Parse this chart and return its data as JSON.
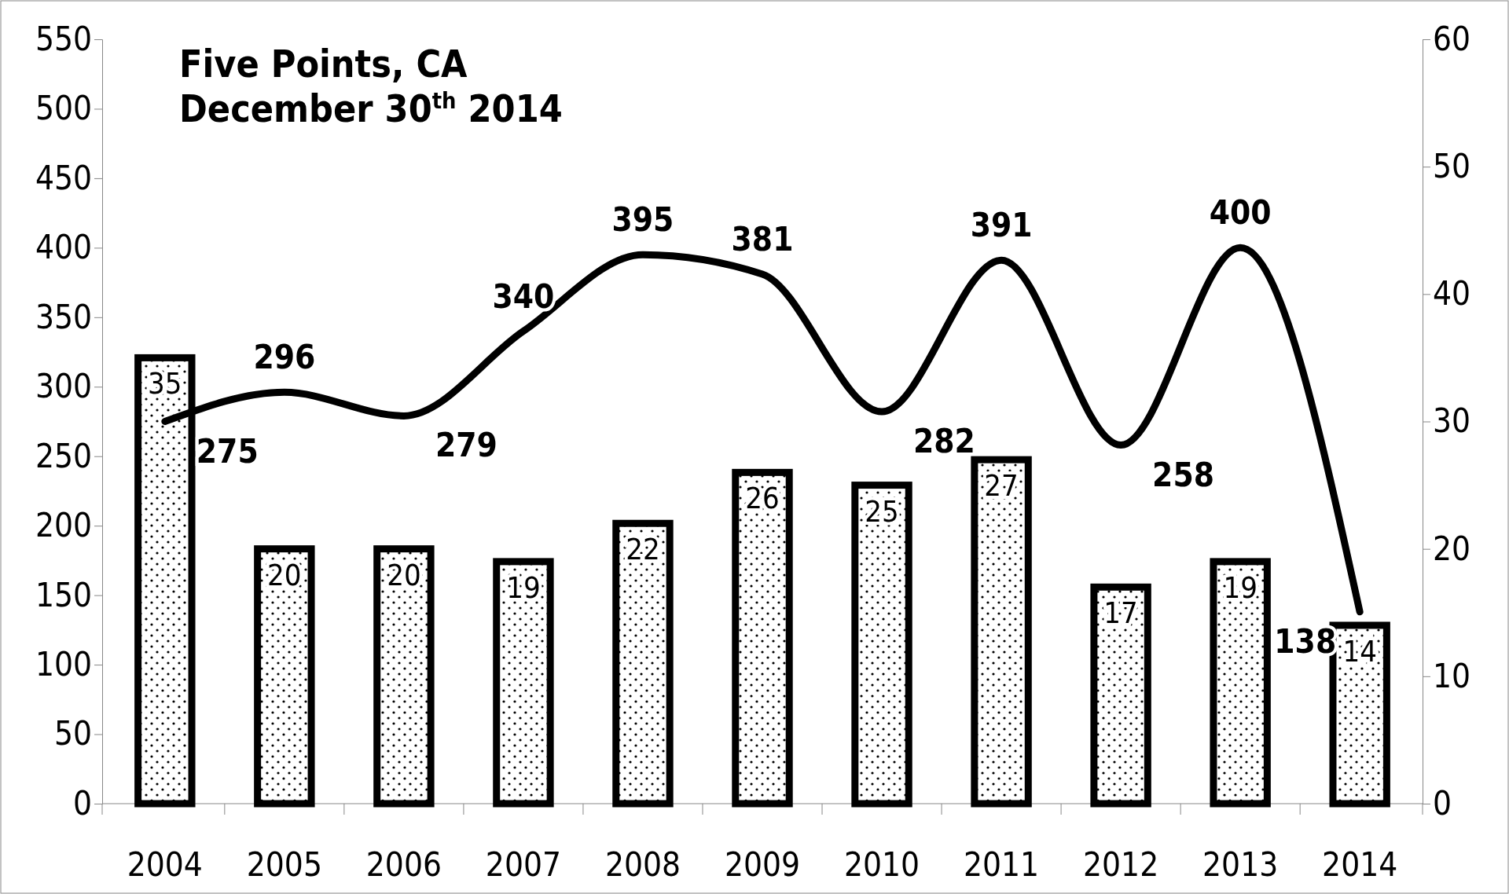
{
  "chart_data": {
    "type": "bar",
    "title": "Five Points, CA",
    "subtitle": "December 30$^{th}$ 2014",
    "categories": [
      "2004",
      "2005",
      "2006",
      "2007",
      "2008",
      "2009",
      "2010",
      "2011",
      "2012",
      "2013",
      "2014"
    ],
    "series": [
      {
        "axis": "y2",
        "color": "#000000",
        "values": [
          35,
          20,
          20,
          19,
          22,
          26,
          25,
          27,
          17,
          19,
          14
        ]
      },
      {
        "type": "line",
        "color": "#000000",
        "values": [
          275,
          296,
          279,
          340,
          395,
          381,
          282,
          391,
          258,
          400,
          138
        ]
      }
    ],
    "ylim": [
      0,
      550
    ],
    "yticks": [
      0,
      50,
      100,
      150,
      200,
      250,
      300,
      350,
      400,
      450,
      500,
      550
    ],
    "y2lim": [
      0,
      60
    ],
    "y2ticks": [
      0,
      10,
      20,
      30,
      40,
      50,
      60
    ],
    "data_labels": true,
    "marker": "none",
    "line_style": "solid",
    "grid": false
  }
}
